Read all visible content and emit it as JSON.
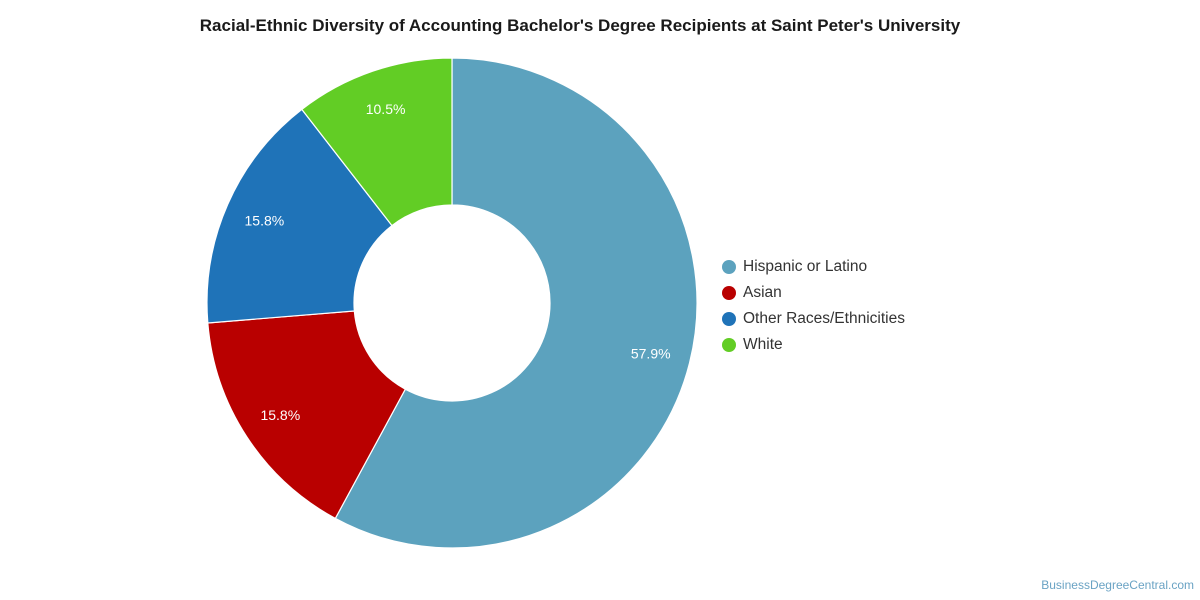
{
  "title": "Racial-Ethnic Diversity of Accounting Bachelor's Degree Recipients at Saint Peter's University",
  "credit": "BusinessDegreeCentral.com",
  "chart_data": {
    "type": "pie",
    "donut": true,
    "title": "Racial-Ethnic Diversity of Accounting Bachelor's Degree Recipients at Saint Peter's University",
    "legend_position": "right",
    "slices": [
      {
        "name": "Hispanic or Latino",
        "value": 57.9,
        "label": "57.9%",
        "color": "#5ca2be"
      },
      {
        "name": "Asian",
        "value": 15.8,
        "label": "15.8%",
        "color": "#b90000"
      },
      {
        "name": "Other Races/Ethnicities",
        "value": 15.8,
        "label": "15.8%",
        "color": "#1f73b8"
      },
      {
        "name": "White",
        "value": 10.5,
        "label": "10.5%",
        "color": "#62cd25"
      }
    ]
  }
}
